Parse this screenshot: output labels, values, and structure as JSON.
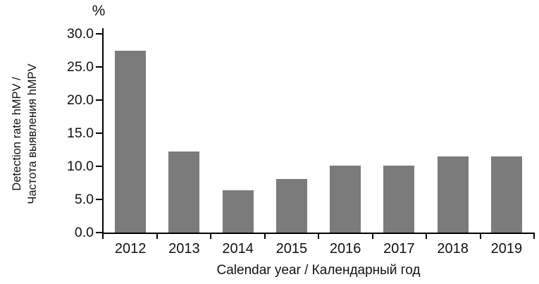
{
  "chart_data": {
    "type": "bar",
    "categories": [
      "2012",
      "2013",
      "2014",
      "2015",
      "2016",
      "2017",
      "2018",
      "2019"
    ],
    "values": [
      27.5,
      12.2,
      6.4,
      8.1,
      10.1,
      10.1,
      11.5,
      11.5
    ],
    "title": "",
    "xlabel": "Calendar year / Календарный год",
    "ylabel": "Detection rate hMPV / Частота выявления hMPV",
    "ylabel_lines": [
      "Detection rate hMPV /",
      "Частота выявления hMPV"
    ],
    "unit": "%",
    "ylim": [
      0,
      30
    ],
    "ytick_step": 5,
    "ytick_decimals": 1,
    "grid": false,
    "legend": "none",
    "bar_color": "#7b7b7b",
    "axis_color": "#000000"
  }
}
